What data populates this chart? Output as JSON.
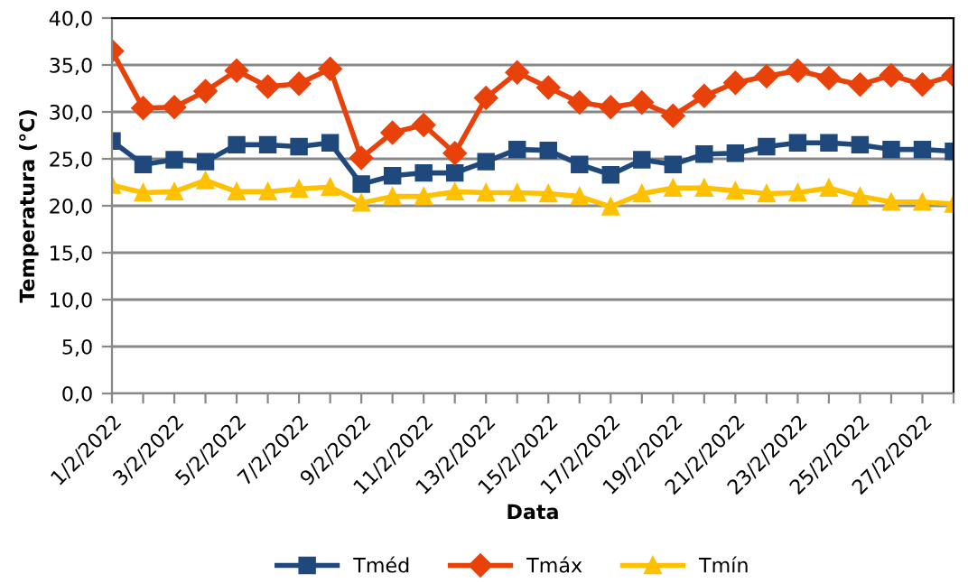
{
  "chart_data": {
    "type": "line",
    "xlabel": "Data",
    "ylabel": "Temperatura (°C)",
    "categories": [
      "1/2/2022",
      null,
      "3/2/2022",
      null,
      "5/2/2022",
      null,
      "7/2/2022",
      null,
      "9/2/2022",
      null,
      "11/2/2022",
      null,
      "13/2/2022",
      null,
      "15/2/2022",
      null,
      "17/2/2022",
      null,
      "19/2/2022",
      null,
      "21/2/2022",
      null,
      "23/2/2022",
      null,
      "25/2/2022",
      null,
      "27/2/2022",
      null
    ],
    "series": [
      {
        "name": "Tméd",
        "color": "#1f497d",
        "marker": "square",
        "values": [
          26.9,
          24.4,
          24.9,
          24.7,
          26.5,
          26.5,
          26.3,
          26.7,
          22.3,
          23.2,
          23.5,
          23.5,
          24.7,
          26.0,
          25.9,
          24.4,
          23.3,
          24.9,
          24.4,
          25.5,
          25.6,
          26.3,
          26.7,
          26.7,
          26.5,
          26.0,
          26.0,
          25.8
        ]
      },
      {
        "name": "Tmáx",
        "color": "#e8420a",
        "marker": "diamond",
        "values": [
          36.5,
          30.4,
          30.5,
          32.2,
          34.4,
          32.7,
          33.0,
          34.6,
          25.1,
          27.8,
          28.6,
          25.6,
          31.5,
          34.2,
          32.6,
          31.0,
          30.5,
          31.0,
          29.6,
          31.7,
          33.1,
          33.8,
          34.4,
          33.6,
          32.9,
          33.9,
          32.9,
          33.9
        ]
      },
      {
        "name": "Tmín",
        "color": "#ffc000",
        "marker": "triangle",
        "values": [
          22.2,
          21.4,
          21.5,
          22.7,
          21.5,
          21.5,
          21.8,
          22.0,
          20.3,
          21.0,
          21.0,
          21.5,
          21.4,
          21.4,
          21.3,
          21.0,
          19.9,
          21.3,
          21.9,
          21.9,
          21.6,
          21.3,
          21.4,
          21.9,
          21.0,
          20.4,
          20.4,
          20.2
        ]
      }
    ],
    "ylim": [
      0,
      40
    ],
    "yticks": [
      {
        "value": 0,
        "label": "0,0"
      },
      {
        "value": 5,
        "label": "5,0"
      },
      {
        "value": 10,
        "label": "10,0"
      },
      {
        "value": 15,
        "label": "15,0"
      },
      {
        "value": 20,
        "label": "20,0"
      },
      {
        "value": 25,
        "label": "25,0"
      },
      {
        "value": 30,
        "label": "30,0"
      },
      {
        "value": 35,
        "label": "35,0"
      },
      {
        "value": 40,
        "label": "40,0"
      }
    ],
    "grid": "y",
    "legend": "bottom",
    "line_style": "solid"
  }
}
